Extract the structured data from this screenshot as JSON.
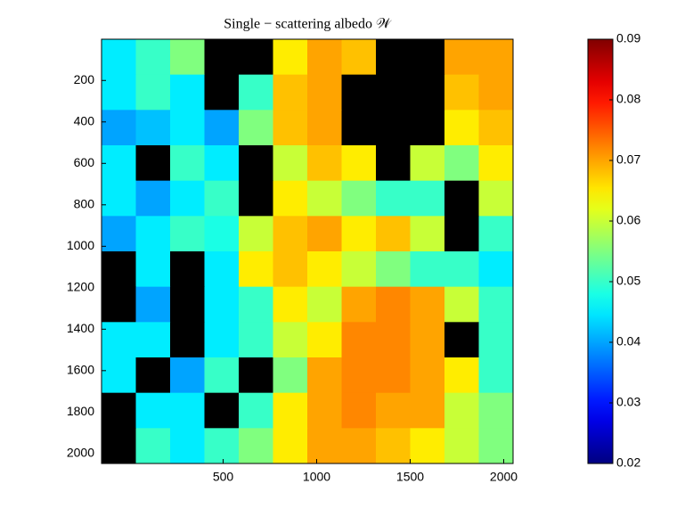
{
  "chart_data": {
    "type": "heatmap",
    "title": "Single − scattering albedo 𝒲",
    "colormap": "jet",
    "missing_color": "#000000",
    "xlim": [
      -150,
      2050
    ],
    "xticks": [
      500,
      1000,
      1500,
      2000
    ],
    "ylim": [
      1,
      2048
    ],
    "yticks": [
      200,
      400,
      600,
      800,
      1000,
      1200,
      1400,
      1600,
      1800,
      2000
    ],
    "y_reversed": true,
    "clim": [
      0.02,
      0.09
    ],
    "cticks": [
      0.02,
      0.03,
      0.04,
      0.05,
      0.06,
      0.07,
      0.08,
      0.09
    ],
    "z": [
      [
        0.045,
        0.05,
        0.055,
        null,
        null,
        0.065,
        0.07,
        0.068,
        null,
        null,
        0.07,
        0.07
      ],
      [
        0.045,
        0.05,
        0.045,
        null,
        0.05,
        0.068,
        0.07,
        null,
        null,
        null,
        0.068,
        0.07
      ],
      [
        0.04,
        0.042,
        0.045,
        0.04,
        0.055,
        0.068,
        0.07,
        null,
        null,
        null,
        0.065,
        0.068
      ],
      [
        0.045,
        null,
        0.05,
        0.045,
        null,
        0.06,
        0.068,
        0.065,
        null,
        0.06,
        0.055,
        0.065
      ],
      [
        0.045,
        0.04,
        0.045,
        0.05,
        null,
        0.065,
        0.06,
        0.055,
        0.05,
        0.05,
        null,
        0.06
      ],
      [
        0.04,
        0.045,
        0.05,
        0.048,
        0.06,
        0.068,
        0.07,
        0.065,
        0.068,
        0.06,
        null,
        0.05
      ],
      [
        null,
        0.045,
        null,
        0.045,
        0.065,
        0.068,
        0.065,
        0.06,
        0.055,
        0.05,
        0.05,
        0.045
      ],
      [
        null,
        0.04,
        null,
        0.045,
        0.05,
        0.065,
        0.06,
        0.07,
        0.072,
        0.07,
        0.06,
        0.05
      ],
      [
        0.045,
        0.045,
        null,
        0.045,
        0.05,
        0.06,
        0.065,
        0.072,
        0.072,
        0.07,
        null,
        0.05
      ],
      [
        0.045,
        null,
        0.04,
        0.05,
        null,
        0.055,
        0.07,
        0.072,
        0.072,
        0.07,
        0.065,
        0.05
      ],
      [
        null,
        0.045,
        0.045,
        null,
        0.05,
        0.065,
        0.07,
        0.072,
        0.07,
        0.07,
        0.06,
        0.055
      ],
      [
        null,
        0.05,
        0.045,
        0.05,
        0.055,
        0.065,
        0.07,
        0.07,
        0.068,
        0.065,
        0.06,
        0.055
      ]
    ]
  }
}
